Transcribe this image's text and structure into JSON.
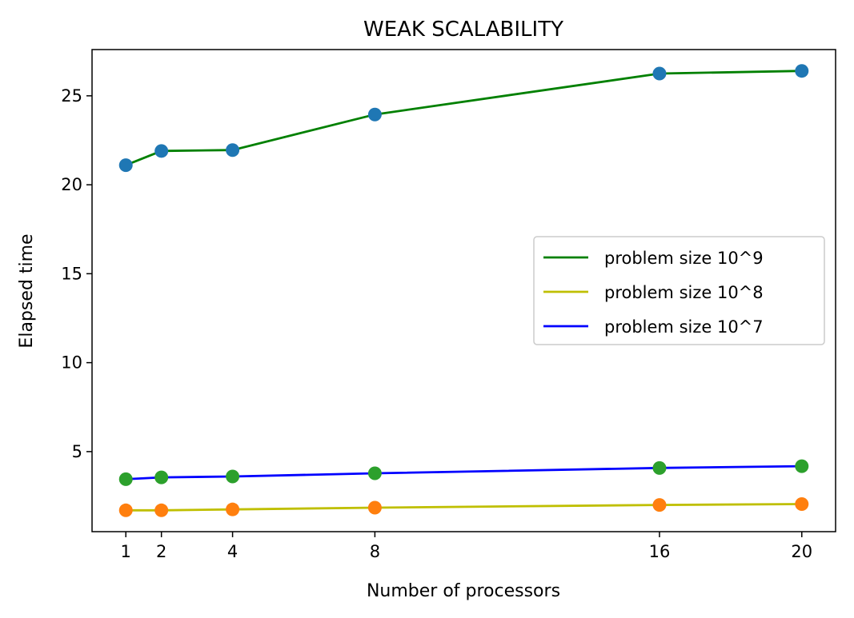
{
  "chart_data": {
    "type": "line",
    "title": "WEAK SCALABILITY",
    "xlabel": "Number of processors",
    "ylabel": "Elapsed time",
    "x": [
      1,
      2,
      4,
      8,
      16,
      20
    ],
    "x_ticks": [
      "1",
      "2",
      "4",
      "8",
      "16",
      "20"
    ],
    "y_ticks": [
      5,
      10,
      15,
      20,
      25
    ],
    "xlim": [
      0.05,
      20.95
    ],
    "ylim": [
      0.5,
      27.6
    ],
    "grid": false,
    "legend_position": "center-right",
    "series": [
      {
        "name": "problem size 10^9",
        "values": [
          21.1,
          21.9,
          21.95,
          23.95,
          26.25,
          26.4
        ],
        "line_color": "#008000",
        "marker_color": "#1f77b4"
      },
      {
        "name": "problem size 10^8",
        "values": [
          1.7,
          1.7,
          1.75,
          1.85,
          2.0,
          2.05
        ],
        "line_color": "#bfbf00",
        "marker_color": "#ff7f0e"
      },
      {
        "name": "problem size 10^7",
        "values": [
          3.45,
          3.55,
          3.6,
          3.78,
          4.08,
          4.18
        ],
        "line_color": "#0000ff",
        "marker_color": "#2ca02c"
      }
    ]
  }
}
